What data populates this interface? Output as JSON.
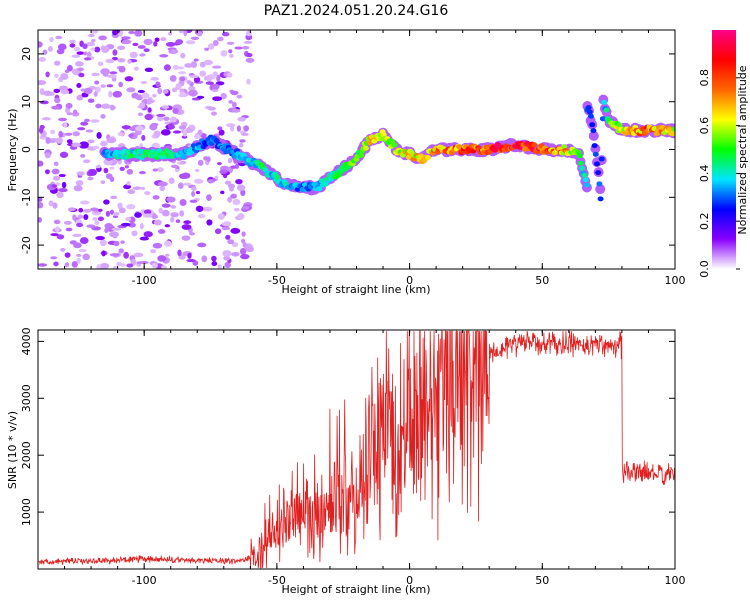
{
  "title": "PAZ1.2024.051.20.24.G16",
  "chart_data": [
    {
      "type": "heatmap",
      "xlabel": "Height of straight line (km)",
      "ylabel": "Frequency (Hz)",
      "xlim": [
        -140,
        100
      ],
      "ylim": [
        -25,
        25
      ],
      "xticks": [
        -100,
        -50,
        0,
        50,
        100
      ],
      "yticks": [
        -20,
        -10,
        0,
        10,
        20
      ],
      "colorbar": {
        "label": "Normalized spectral amplitude",
        "range": [
          0,
          1
        ],
        "ticks": [
          "0.0",
          "0.2",
          "0.4",
          "0.6",
          "0.8"
        ],
        "colors": [
          "#ffffff",
          "#8800ff",
          "#0000ff",
          "#00e5ff",
          "#00ff00",
          "#ffff00",
          "#ff6600",
          "#ff0000",
          "#ff0088"
        ]
      },
      "ridge": {
        "x": [
          -115,
          -105,
          -95,
          -85,
          -75,
          -65,
          -55,
          -48,
          -42,
          -35,
          -30,
          -25,
          -20,
          -15,
          -10,
          -5,
          0,
          5,
          10,
          20,
          30,
          40,
          50,
          58,
          64,
          67
        ],
        "y": [
          -1,
          -1,
          -1,
          -1,
          2,
          -1,
          -4,
          -7,
          -8,
          -8,
          -6,
          -4,
          -2,
          2,
          3,
          0,
          -1,
          -2,
          0,
          0,
          0,
          1,
          0,
          0,
          -1,
          -8
        ],
        "amplitude": [
          0.35,
          0.45,
          0.5,
          0.4,
          0.3,
          0.35,
          0.45,
          0.4,
          0.35,
          0.35,
          0.45,
          0.5,
          0.55,
          0.7,
          0.6,
          0.65,
          0.7,
          0.65,
          0.75,
          0.85,
          0.9,
          0.95,
          0.85,
          0.75,
          0.5,
          0.35
        ]
      },
      "secondary_ridge": {
        "x": [
          67,
          69,
          70,
          71,
          72,
          73,
          75,
          80,
          85,
          90,
          95,
          100
        ],
        "y": [
          9,
          5,
          0,
          -4,
          -10,
          10,
          6,
          4,
          4,
          4,
          4,
          4
        ],
        "amplitude": [
          0.3,
          0.3,
          0.35,
          0.3,
          0.3,
          0.35,
          0.5,
          0.7,
          0.75,
          0.8,
          0.75,
          0.7
        ]
      }
    },
    {
      "type": "line",
      "xlabel": "Height of straight line (km)",
      "ylabel": "SNR (10 * v/v)",
      "xlim": [
        -140,
        100
      ],
      "ylim": [
        0,
        4200
      ],
      "xticks": [
        -100,
        -50,
        0,
        50,
        100
      ],
      "yticks": [
        1000,
        2000,
        3000,
        4000
      ],
      "color": "#e02020",
      "series": [
        {
          "x": [
            -140,
            -120,
            -100,
            -80,
            -65,
            -60,
            -55,
            -50,
            -45,
            -40,
            -35,
            -30,
            -25,
            -20,
            -15,
            -10,
            -5,
            0,
            5,
            10,
            15,
            20,
            25,
            30,
            35,
            40,
            45,
            50,
            55,
            60,
            65,
            70,
            75,
            79,
            80,
            85,
            90,
            95,
            100
          ],
          "y": [
            130,
            140,
            170,
            150,
            140,
            200,
            300,
            600,
            900,
            1000,
            800,
            1100,
            1200,
            1200,
            2100,
            2500,
            2200,
            2200,
            2400,
            2700,
            3000,
            3300,
            3600,
            3800,
            3900,
            3950,
            4000,
            3950,
            3950,
            3950,
            3950,
            3950,
            3950,
            3950,
            1700,
            1700,
            1700,
            1650,
            1650
          ]
        }
      ]
    }
  ]
}
